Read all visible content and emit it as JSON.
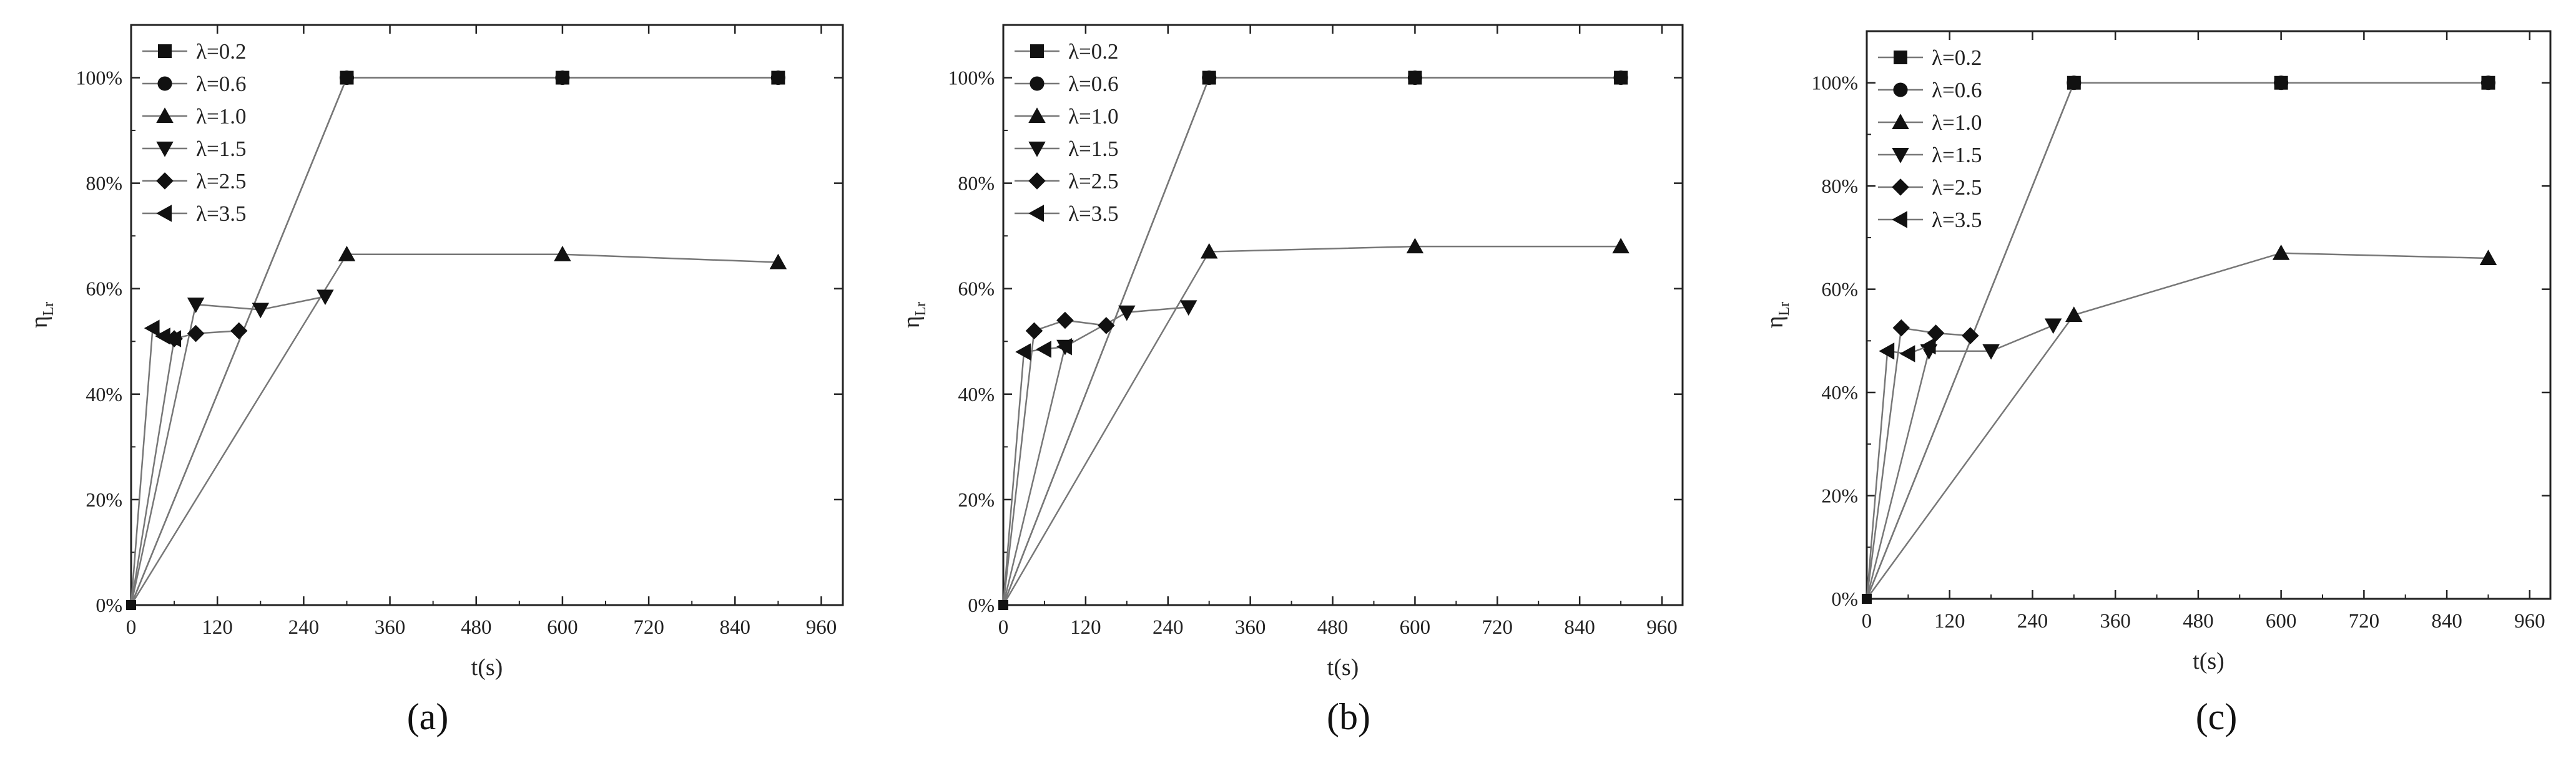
{
  "figure": {
    "panel_labels": [
      "(a)",
      "(b)",
      "(c)"
    ],
    "legend_entries": [
      "λ=0.2",
      "λ=0.6",
      "λ=1.0",
      "λ=1.5",
      "λ=2.5",
      "λ=3.5"
    ],
    "xlabel": "t(s)",
    "ylabel": "η",
    "ylabel_sub": "Lr"
  },
  "chart_data": [
    {
      "type": "line",
      "panel": "(a)",
      "xlabel": "t(s)",
      "ylabel": "ηLr",
      "xlim": [
        0,
        990
      ],
      "ylim": [
        0,
        1.1
      ],
      "xticks": [
        0,
        120,
        240,
        360,
        480,
        600,
        720,
        840,
        960
      ],
      "yticks": [
        0,
        0.2,
        0.4,
        0.6,
        0.8,
        1.0
      ],
      "ytick_labels": [
        "0%",
        "20%",
        "40%",
        "60%",
        "80%",
        "100%"
      ],
      "grid": false,
      "legend": "top-left",
      "series": [
        {
          "name": "λ=0.2",
          "marker": "square",
          "x": [
            0,
            300,
            600,
            900
          ],
          "y": [
            0,
            1.0,
            1.0,
            1.0
          ]
        },
        {
          "name": "λ=0.6",
          "marker": "circle",
          "x": [
            0,
            300,
            600,
            900
          ],
          "y": [
            0,
            1.0,
            1.0,
            1.0
          ]
        },
        {
          "name": "λ=1.0",
          "marker": "triangle-up",
          "x": [
            0,
            300,
            600,
            900
          ],
          "y": [
            0,
            0.665,
            0.665,
            0.65
          ]
        },
        {
          "name": "λ=1.5",
          "marker": "triangle-down",
          "x": [
            0,
            90,
            180,
            270
          ],
          "y": [
            0,
            0.57,
            0.56,
            0.585
          ]
        },
        {
          "name": "λ=2.5",
          "marker": "diamond",
          "x": [
            0,
            60,
            90,
            150
          ],
          "y": [
            0,
            0.505,
            0.515,
            0.52
          ]
        },
        {
          "name": "λ=3.5",
          "marker": "triangle-left",
          "x": [
            0,
            30,
            45,
            60
          ],
          "y": [
            0,
            0.525,
            0.51,
            0.505
          ]
        }
      ]
    },
    {
      "type": "line",
      "panel": "(b)",
      "xlabel": "t(s)",
      "ylabel": "ηLr",
      "xlim": [
        0,
        990
      ],
      "ylim": [
        0,
        1.1
      ],
      "xticks": [
        0,
        120,
        240,
        360,
        480,
        600,
        720,
        840,
        960
      ],
      "yticks": [
        0,
        0.2,
        0.4,
        0.6,
        0.8,
        1.0
      ],
      "ytick_labels": [
        "0%",
        "20%",
        "40%",
        "60%",
        "80%",
        "100%"
      ],
      "grid": false,
      "legend": "top-left",
      "series": [
        {
          "name": "λ=0.2",
          "marker": "square",
          "x": [
            0,
            300,
            600,
            900
          ],
          "y": [
            0,
            1.0,
            1.0,
            1.0
          ]
        },
        {
          "name": "λ=0.6",
          "marker": "circle",
          "x": [
            0,
            300,
            600,
            900
          ],
          "y": [
            0,
            1.0,
            1.0,
            1.0
          ]
        },
        {
          "name": "λ=1.0",
          "marker": "triangle-up",
          "x": [
            0,
            300,
            600,
            900
          ],
          "y": [
            0,
            0.67,
            0.68,
            0.68
          ]
        },
        {
          "name": "λ=1.5",
          "marker": "triangle-down",
          "x": [
            0,
            90,
            180,
            270
          ],
          "y": [
            0,
            0.49,
            0.555,
            0.565
          ]
        },
        {
          "name": "λ=2.5",
          "marker": "diamond",
          "x": [
            0,
            45,
            90,
            150
          ],
          "y": [
            0,
            0.52,
            0.54,
            0.53
          ]
        },
        {
          "name": "λ=3.5",
          "marker": "triangle-left",
          "x": [
            0,
            30,
            60,
            90
          ],
          "y": [
            0,
            0.48,
            0.485,
            0.49
          ]
        }
      ]
    },
    {
      "type": "line",
      "panel": "(c)",
      "xlabel": "t(s)",
      "ylabel": "ηLr",
      "xlim": [
        0,
        990
      ],
      "ylim": [
        0,
        1.1
      ],
      "xticks": [
        0,
        120,
        240,
        360,
        480,
        600,
        720,
        840,
        960
      ],
      "yticks": [
        0,
        0.2,
        0.4,
        0.6,
        0.8,
        1.0
      ],
      "ytick_labels": [
        "0%",
        "20%",
        "40%",
        "60%",
        "80%",
        "100%"
      ],
      "grid": false,
      "legend": "top-left",
      "series": [
        {
          "name": "λ=0.2",
          "marker": "square",
          "x": [
            0,
            300,
            600,
            900
          ],
          "y": [
            0,
            1.0,
            1.0,
            1.0
          ]
        },
        {
          "name": "λ=0.6",
          "marker": "circle",
          "x": [
            0,
            300,
            600,
            900
          ],
          "y": [
            0,
            1.0,
            1.0,
            1.0
          ]
        },
        {
          "name": "λ=1.0",
          "marker": "triangle-up",
          "x": [
            0,
            300,
            600,
            900
          ],
          "y": [
            0,
            0.55,
            0.67,
            0.66
          ]
        },
        {
          "name": "λ=1.5",
          "marker": "triangle-down",
          "x": [
            0,
            90,
            180,
            270
          ],
          "y": [
            0,
            0.48,
            0.48,
            0.53
          ]
        },
        {
          "name": "λ=2.5",
          "marker": "diamond",
          "x": [
            0,
            50,
            100,
            150
          ],
          "y": [
            0,
            0.525,
            0.515,
            0.51
          ]
        },
        {
          "name": "λ=3.5",
          "marker": "triangle-left",
          "x": [
            0,
            30,
            60,
            90
          ],
          "y": [
            0,
            0.48,
            0.475,
            0.49
          ]
        }
      ]
    }
  ]
}
